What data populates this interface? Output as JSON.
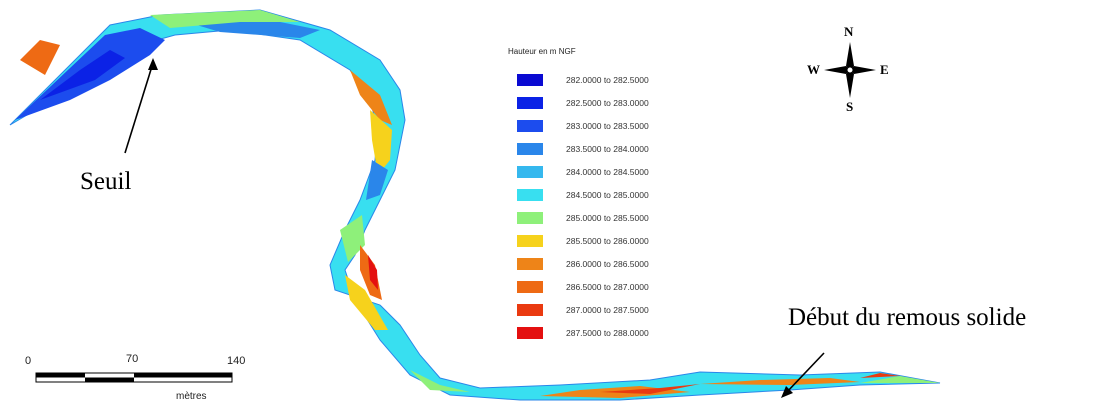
{
  "legend": {
    "title": "Hauteur en m NGF",
    "entries": [
      {
        "label": "282.0000 to 282.5000",
        "color": "#0a0ad2"
      },
      {
        "label": "282.5000 to 283.0000",
        "color": "#0b22e6"
      },
      {
        "label": "283.0000 to 283.5000",
        "color": "#1c4cee"
      },
      {
        "label": "283.5000 to 284.0000",
        "color": "#2a86ea"
      },
      {
        "label": "284.0000 to 284.5000",
        "color": "#35b8ee"
      },
      {
        "label": "284.5000 to 285.0000",
        "color": "#38dff0"
      },
      {
        "label": "285.0000 to 285.5000",
        "color": "#8ef07a"
      },
      {
        "label": "285.5000 to 286.0000",
        "color": "#f6d21c"
      },
      {
        "label": "286.0000 to 286.5000",
        "color": "#ee8418"
      },
      {
        "label": "286.5000 to 287.0000",
        "color": "#ee6a14"
      },
      {
        "label": "287.0000 to 287.5000",
        "color": "#ea3a10"
      },
      {
        "label": "287.5000 to 288.0000",
        "color": "#e41010"
      }
    ]
  },
  "annotations": {
    "seuil": "Seuil",
    "remous": "Début du remous solide"
  },
  "scale_bar": {
    "ticks": [
      "0",
      "70",
      "140"
    ],
    "unit": "mètres"
  },
  "compass": {
    "north": "N",
    "south": "S",
    "east": "E",
    "west": "W"
  }
}
